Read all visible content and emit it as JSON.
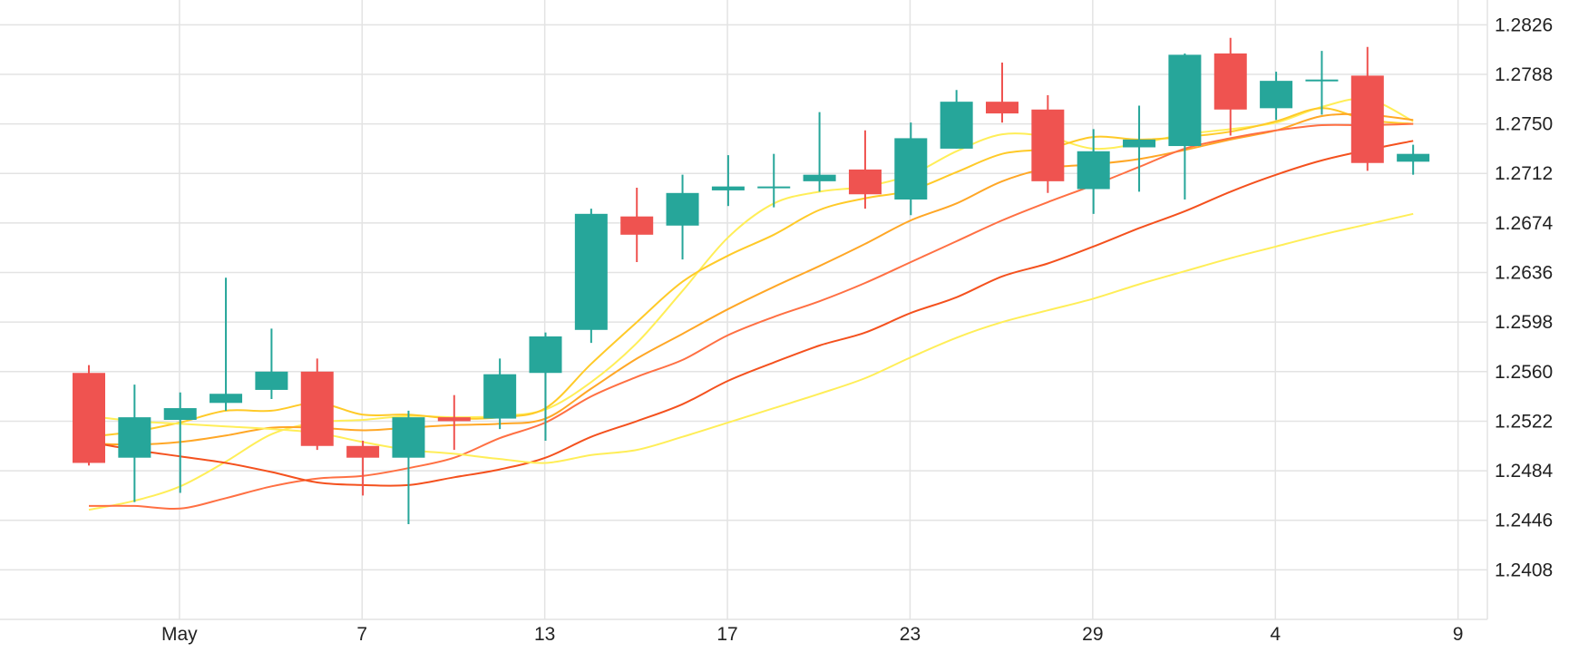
{
  "chart_data": {
    "type": "candlestick",
    "title": "",
    "xlabel": "",
    "ylabel": "",
    "ylim": [
      1.237,
      1.2845
    ],
    "grid": true,
    "colors": {
      "up": "#26a69a",
      "down": "#ef5350",
      "grid": "#e3e3e3",
      "axis_text": "#222222",
      "ma_colors": [
        "#ffee58",
        "#ffca28",
        "#ffa726",
        "#ff7043",
        "#f4511e"
      ]
    },
    "y_ticks": [
      "1.2408",
      "1.2446",
      "1.2484",
      "1.2522",
      "1.2560",
      "1.2598",
      "1.2636",
      "1.2674",
      "1.2712",
      "1.2750",
      "1.2788",
      "1.2826"
    ],
    "x_ticks": [
      {
        "label": "May",
        "index": 1
      },
      {
        "label": "7",
        "index": 5
      },
      {
        "label": "13",
        "index": 9
      },
      {
        "label": "17",
        "index": 13
      },
      {
        "label": "23",
        "index": 17
      },
      {
        "label": "29",
        "index": 21
      },
      {
        "label": "4",
        "index": 25
      },
      {
        "label": "9",
        "index": 29
      }
    ],
    "candles": [
      {
        "o": 1.2559,
        "h": 1.2565,
        "l": 1.2488,
        "c": 1.249
      },
      {
        "o": 1.2494,
        "h": 1.255,
        "l": 1.246,
        "c": 1.2525
      },
      {
        "o": 1.2523,
        "h": 1.2544,
        "l": 1.2467,
        "c": 1.2532
      },
      {
        "o": 1.2536,
        "h": 1.2632,
        "l": 1.253,
        "c": 1.2543
      },
      {
        "o": 1.2546,
        "h": 1.2593,
        "l": 1.2539,
        "c": 1.256
      },
      {
        "o": 1.256,
        "h": 1.257,
        "l": 1.25,
        "c": 1.2503
      },
      {
        "o": 1.2503,
        "h": 1.2507,
        "l": 1.2465,
        "c": 1.2494
      },
      {
        "o": 1.2494,
        "h": 1.253,
        "l": 1.2443,
        "c": 1.2525
      },
      {
        "o": 1.2525,
        "h": 1.2542,
        "l": 1.25,
        "c": 1.2522
      },
      {
        "o": 1.2524,
        "h": 1.257,
        "l": 1.2516,
        "c": 1.2558
      },
      {
        "o": 1.2559,
        "h": 1.259,
        "l": 1.2507,
        "c": 1.2587
      },
      {
        "o": 1.2592,
        "h": 1.2685,
        "l": 1.2582,
        "c": 1.2681
      },
      {
        "o": 1.2679,
        "h": 1.2701,
        "l": 1.2644,
        "c": 1.2665
      },
      {
        "o": 1.2672,
        "h": 1.2711,
        "l": 1.2646,
        "c": 1.2697
      },
      {
        "o": 1.2699,
        "h": 1.2726,
        "l": 1.2687,
        "c": 1.2702
      },
      {
        "o": 1.2701,
        "h": 1.2727,
        "l": 1.2686,
        "c": 1.2702
      },
      {
        "o": 1.2706,
        "h": 1.2759,
        "l": 1.2698,
        "c": 1.2711
      },
      {
        "o": 1.2715,
        "h": 1.2745,
        "l": 1.2685,
        "c": 1.2696
      },
      {
        "o": 1.2692,
        "h": 1.2751,
        "l": 1.268,
        "c": 1.2739
      },
      {
        "o": 1.2731,
        "h": 1.2776,
        "l": 1.2731,
        "c": 1.2767
      },
      {
        "o": 1.2767,
        "h": 1.2797,
        "l": 1.2751,
        "c": 1.2758
      },
      {
        "o": 1.2761,
        "h": 1.2772,
        "l": 1.2697,
        "c": 1.2706
      },
      {
        "o": 1.27,
        "h": 1.2746,
        "l": 1.2681,
        "c": 1.2729
      },
      {
        "o": 1.2732,
        "h": 1.2764,
        "l": 1.2698,
        "c": 1.2738
      },
      {
        "o": 1.2733,
        "h": 1.2804,
        "l": 1.2692,
        "c": 1.2803
      },
      {
        "o": 1.2804,
        "h": 1.2816,
        "l": 1.2741,
        "c": 1.2761
      },
      {
        "o": 1.2762,
        "h": 1.279,
        "l": 1.2753,
        "c": 1.2783
      },
      {
        "o": 1.2783,
        "h": 1.2806,
        "l": 1.2757,
        "c": 1.2784
      },
      {
        "o": 1.2787,
        "h": 1.2809,
        "l": 1.2714,
        "c": 1.272
      },
      {
        "o": 1.2721,
        "h": 1.2734,
        "l": 1.2711,
        "c": 1.2727
      }
    ],
    "moving_averages": [
      {
        "values": [
          1.2454,
          1.2461,
          1.2472,
          1.2491,
          1.2512,
          1.2521,
          1.2523,
          1.2526,
          1.2525,
          1.2526,
          1.2531,
          1.2552,
          1.2582,
          1.2622,
          1.2663,
          1.2689,
          1.2698,
          1.2702,
          1.2711,
          1.2729,
          1.2742,
          1.274,
          1.2731,
          1.2735,
          1.2742,
          1.2746,
          1.2751,
          1.2763,
          1.2769,
          1.2752
        ]
      },
      {
        "values": [
          1.251,
          1.2514,
          1.2521,
          1.253,
          1.253,
          1.2536,
          1.2527,
          1.2527,
          1.2524,
          1.2525,
          1.2532,
          1.2566,
          1.2598,
          1.2629,
          1.2649,
          1.2665,
          1.2684,
          1.2693,
          1.2699,
          1.2713,
          1.2727,
          1.2731,
          1.274,
          1.2738,
          1.274,
          1.2744,
          1.2752,
          1.2762,
          1.2753,
          1.275
        ]
      },
      {
        "values": [
          1.2505,
          1.2504,
          1.2506,
          1.2511,
          1.2517,
          1.2517,
          1.2515,
          1.2517,
          1.2519,
          1.252,
          1.2524,
          1.2547,
          1.257,
          1.2589,
          1.2608,
          1.2625,
          1.2641,
          1.2658,
          1.2676,
          1.2689,
          1.2706,
          1.2716,
          1.2719,
          1.2723,
          1.273,
          1.2738,
          1.2745,
          1.2756,
          1.2757,
          1.2753
        ]
      },
      {
        "values": [
          1.2457,
          1.2457,
          1.2455,
          1.2463,
          1.2472,
          1.2478,
          1.248,
          1.2486,
          1.2494,
          1.2509,
          1.2521,
          1.2541,
          1.2556,
          1.2569,
          1.2588,
          1.2602,
          1.2614,
          1.2628,
          1.2644,
          1.266,
          1.2676,
          1.269,
          1.2703,
          1.2717,
          1.2731,
          1.2739,
          1.2745,
          1.2749,
          1.2749,
          1.275
        ]
      },
      {
        "values": [
          1.2506,
          1.25,
          1.2495,
          1.249,
          1.2483,
          1.2475,
          1.2473,
          1.2473,
          1.2479,
          1.2485,
          1.2494,
          1.251,
          1.2522,
          1.2535,
          1.2553,
          1.2567,
          1.258,
          1.259,
          1.2605,
          1.2617,
          1.2633,
          1.2643,
          1.2656,
          1.267,
          1.2683,
          1.2698,
          1.2711,
          1.2722,
          1.273,
          1.2737
        ]
      },
      {
        "values": [
          1.2526,
          1.2522,
          1.252,
          1.2518,
          1.2516,
          1.2513,
          1.2506,
          1.25,
          1.2497,
          1.2493,
          1.249,
          1.2496,
          1.25,
          1.251,
          1.2521,
          1.2532,
          1.2543,
          1.2555,
          1.2571,
          1.2586,
          1.2598,
          1.2607,
          1.2616,
          1.2627,
          1.2637,
          1.2647,
          1.2656,
          1.2665,
          1.2673,
          1.2681
        ]
      }
    ]
  }
}
